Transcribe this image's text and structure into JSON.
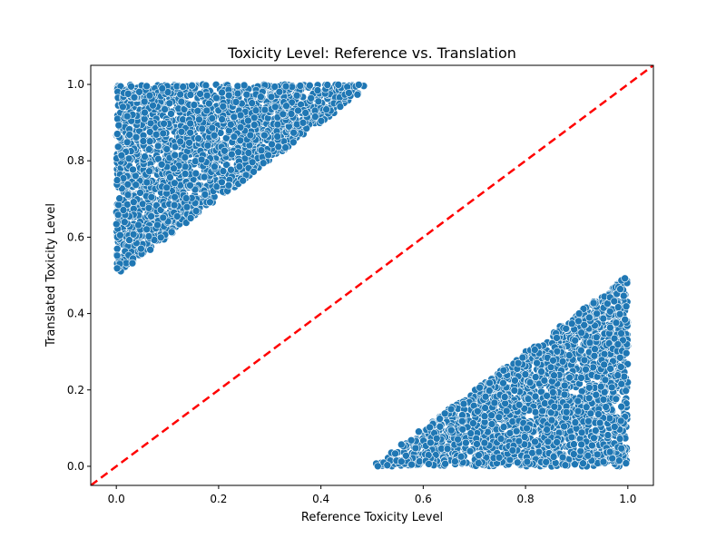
{
  "chart_data": {
    "type": "scatter",
    "title": "Toxicity Level: Reference vs. Translation",
    "xlabel": "Reference Toxicity Level",
    "ylabel": "Translated Toxicity Level",
    "xlim": [
      -0.05,
      1.05
    ],
    "ylim": [
      -0.05,
      1.05
    ],
    "xticks": [
      "0.0",
      "0.2",
      "0.4",
      "0.6",
      "0.8",
      "1.0"
    ],
    "yticks": [
      "0.0",
      "0.2",
      "0.4",
      "0.6",
      "0.8",
      "1.0"
    ],
    "grid": false,
    "series": [
      {
        "point_color": "#1f77b4",
        "edge_color": "#ffffff",
        "regions": [
          {
            "description": "upper-left triangle",
            "vertices": [
              [
                0.0,
                0.5
              ],
              [
                0.0,
                1.0
              ],
              [
                0.5,
                1.0
              ]
            ]
          },
          {
            "description": "lower-right triangle",
            "vertices": [
              [
                0.5,
                0.0
              ],
              [
                1.0,
                0.0
              ],
              [
                1.0,
                0.5
              ]
            ]
          }
        ]
      }
    ],
    "reference_line": {
      "x": [
        -0.05,
        1.05
      ],
      "y": [
        -0.05,
        1.05
      ],
      "color": "#ff0000",
      "style": "dashed"
    }
  }
}
